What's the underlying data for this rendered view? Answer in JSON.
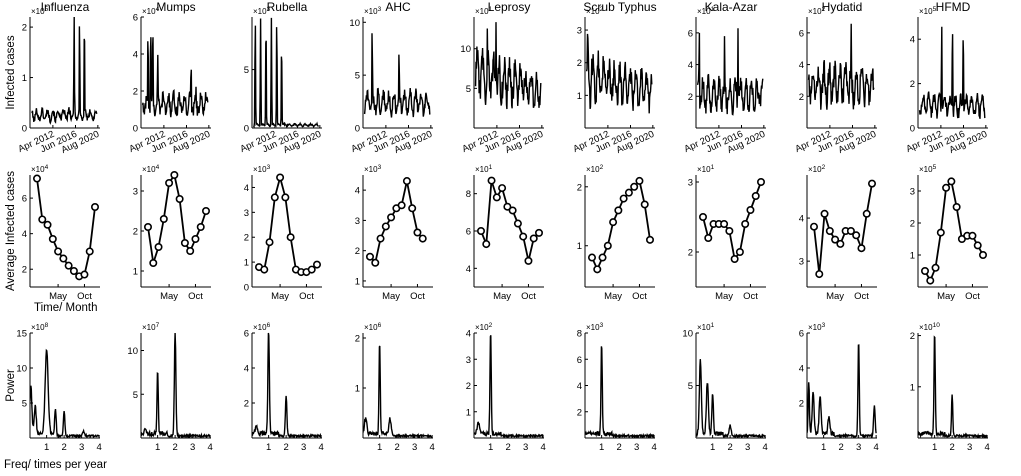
{
  "chart_data": {
    "type": "line",
    "layout": "3x9 small multiples",
    "diseases": [
      "Influenza",
      "Mumps",
      "Rubella",
      "AHC",
      "Leprosy",
      "Scrub Typhus",
      "Kala-Azar",
      "Hydatid",
      "HFMD"
    ],
    "rows": [
      {
        "id": "timeseries",
        "ylabel": "Infected cases",
        "xlabel": "",
        "xticks": [
          "Apr 2012",
          "Jun 2016",
          "Aug 2020"
        ],
        "xlim": [
          2008,
          2021
        ],
        "panels": [
          {
            "disease": "Influenza",
            "exponent": "5",
            "ylim": [
              0,
              2.2
            ],
            "yticks": [
              0,
              1,
              2
            ],
            "peaks": [
              [
                2016.2,
                2.25
              ],
              [
                2017.2,
                2.25
              ],
              [
                2018.1,
                2.25
              ]
            ],
            "base": 0.3
          },
          {
            "disease": "Mumps",
            "exponent": "4",
            "ylim": [
              0,
              6
            ],
            "yticks": [
              0,
              2,
              4,
              6
            ],
            "peaks": [
              [
                2009.3,
                5.5
              ],
              [
                2009.8,
                5.8
              ],
              [
                2010.2,
                6
              ],
              [
                2011.1,
                4.3
              ],
              [
                2017.3,
                3.8
              ],
              [
                2018.2,
                2.4
              ]
            ],
            "base": 1.5
          },
          {
            "disease": "Rubella",
            "exponent": "3",
            "ylim": [
              0,
              9.5
            ],
            "yticks": [
              0,
              5
            ],
            "peaks": [
              [
                2008.6,
                9.5
              ],
              [
                2009.6,
                9.5
              ],
              [
                2010.6,
                9.5
              ],
              [
                2011.6,
                9.5
              ],
              [
                2012.6,
                9.5
              ],
              [
                2013.5,
                7.6
              ]
            ],
            "base": 0.3
          },
          {
            "disease": "AHC",
            "exponent": "3",
            "ylim": [
              0,
              10.5
            ],
            "yticks": [
              0,
              5,
              10
            ],
            "peaks": [
              [
                2009.7,
                10.2
              ],
              [
                2014.7,
                7.8
              ]
            ],
            "base": 2.8
          },
          {
            "disease": "Leprosy",
            "exponent": "1",
            "ylim": [
              0,
              14
            ],
            "yticks": [
              5,
              10
            ],
            "peaks": [
              [
                2010.5,
                12.5
              ],
              [
                2012.1,
                13
              ]
            ],
            "base": 7
          },
          {
            "disease": "Scrub Typhus",
            "exponent": "2",
            "ylim": [
              0,
              3.4
            ],
            "yticks": [
              1,
              2,
              3
            ],
            "peaks": [
              [
                2008.5,
                3.2
              ]
            ],
            "base": 1.6
          },
          {
            "disease": "Kala-Azar",
            "exponent": "1",
            "ylim": [
              0,
              7
            ],
            "yticks": [
              2,
              4,
              6
            ],
            "peaks": [
              [
                2008.6,
                6.5
              ],
              [
                2013.3,
                5.8
              ],
              [
                2015.8,
                6.3
              ]
            ],
            "base": 2.5
          },
          {
            "disease": "Hydatid",
            "exponent": "2",
            "ylim": [
              0,
              7
            ],
            "yticks": [
              2,
              4,
              6
            ],
            "peaks": [
              [
                2016.2,
                6.6
              ]
            ],
            "base": 3.2
          },
          {
            "disease": "HFMD",
            "exponent": "5",
            "ylim": [
              0,
              5
            ],
            "yticks": [
              0,
              2,
              4
            ],
            "peaks": [
              [
                2012.4,
                4.7
              ],
              [
                2014.4,
                4.9
              ],
              [
                2016.4,
                4.7
              ]
            ],
            "base": 1.2
          }
        ]
      },
      {
        "id": "monthly",
        "ylabel": "Average Infected cases",
        "xlabel": "Time/ Month",
        "xticks": [
          "May",
          "Oct"
        ],
        "months": [
          1,
          2,
          3,
          4,
          5,
          6,
          7,
          8,
          9,
          10,
          11,
          12
        ],
        "panels": [
          {
            "disease": "Influenza",
            "exponent": "4",
            "ylim": [
              1,
              7.3
            ],
            "yticks": [
              2,
              4,
              6
            ],
            "values": [
              7.1,
              4.8,
              4.5,
              3.7,
              3.0,
              2.6,
              2.2,
              1.9,
              1.6,
              1.7,
              3.0,
              5.5
            ]
          },
          {
            "disease": "Mumps",
            "exponent": "4",
            "ylim": [
              0.6,
              3.4
            ],
            "yticks": [
              1,
              2,
              3
            ],
            "values": [
              2.1,
              1.2,
              1.6,
              2.3,
              3.2,
              3.4,
              2.8,
              1.7,
              1.5,
              1.8,
              2.1,
              2.5
            ]
          },
          {
            "disease": "Rubella",
            "exponent": "3",
            "ylim": [
              0,
              4.5
            ],
            "yticks": [
              0,
              1,
              2,
              3,
              4
            ],
            "values": [
              0.8,
              0.7,
              1.8,
              3.6,
              4.4,
              3.6,
              2.0,
              0.7,
              0.6,
              0.6,
              0.7,
              0.9
            ]
          },
          {
            "disease": "AHC",
            "exponent": "3",
            "ylim": [
              0.8,
              4.5
            ],
            "yticks": [
              1,
              2,
              3,
              4
            ],
            "values": [
              1.8,
              1.6,
              2.4,
              2.8,
              3.1,
              3.4,
              3.5,
              4.3,
              3.4,
              2.6,
              2.4,
              null
            ]
          },
          {
            "disease": "Leprosy",
            "exponent": "1",
            "ylim": [
              3,
              9
            ],
            "yticks": [
              4,
              6,
              8
            ],
            "values": [
              6.0,
              5.3,
              8.7,
              7.8,
              8.3,
              7.3,
              7.1,
              6.4,
              5.7,
              4.4,
              5.6,
              5.9
            ]
          },
          {
            "disease": "Scrub Typhus",
            "exponent": "2",
            "ylim": [
              0.3,
              2.2
            ],
            "yticks": [
              1,
              2
            ],
            "values": [
              0.8,
              0.6,
              0.8,
              1.0,
              1.4,
              1.6,
              1.8,
              1.9,
              2.0,
              2.1,
              1.7,
              1.1
            ]
          },
          {
            "disease": "Kala-Azar",
            "exponent": "1",
            "ylim": [
              1.5,
              3.1
            ],
            "yticks": [
              2,
              3
            ],
            "values": [
              2.5,
              2.2,
              2.4,
              2.4,
              2.4,
              2.3,
              1.9,
              2.0,
              2.4,
              2.6,
              2.8,
              3.0
            ]
          },
          {
            "disease": "Hydatid",
            "exponent": "2",
            "ylim": [
              2.4,
              5.0
            ],
            "yticks": [
              3,
              4
            ],
            "values": [
              3.8,
              2.7,
              4.1,
              3.7,
              3.5,
              3.4,
              3.7,
              3.7,
              3.6,
              3.3,
              4.1,
              4.8
            ]
          },
          {
            "disease": "HFMD",
            "exponent": "5",
            "ylim": [
              0,
              3.5
            ],
            "yticks": [
              1,
              2,
              3
            ],
            "values": [
              0.5,
              0.2,
              0.6,
              1.7,
              3.1,
              3.3,
              2.5,
              1.5,
              1.6,
              1.6,
              1.3,
              1.0
            ]
          }
        ]
      },
      {
        "id": "spectrum",
        "ylabel": "Power",
        "xlabel": "Freq/ times per year",
        "xticks": [
          "1",
          "2",
          "3",
          "4"
        ],
        "xlim": [
          0.05,
          4.05
        ],
        "panels": [
          {
            "disease": "Influenza",
            "exponent": "8",
            "ylim": [
              0,
              15
            ],
            "yticks": [
              5,
              10,
              15
            ],
            "peaks": [
              [
                0.1,
                7,
                0.08
              ],
              [
                0.35,
                4,
                0.08
              ],
              [
                1.0,
                12,
                0.12
              ],
              [
                1.5,
                3.5,
                0.06
              ],
              [
                2.0,
                3.5,
                0.06
              ],
              [
                3.1,
                0.6,
                0.08
              ]
            ]
          },
          {
            "disease": "Mumps",
            "exponent": "7",
            "ylim": [
              0,
              12
            ],
            "yticks": [
              5,
              10
            ],
            "peaks": [
              [
                1.0,
                7.5,
                0.05
              ],
              [
                2.0,
                12,
                0.06
              ],
              [
                0.3,
                0.5,
                0.1
              ]
            ]
          },
          {
            "disease": "Rubella",
            "exponent": "6",
            "ylim": [
              0,
              6
            ],
            "yticks": [
              2,
              4,
              6
            ],
            "peaks": [
              [
                1.0,
                6,
                0.06
              ],
              [
                2.0,
                2.3,
                0.06
              ],
              [
                0.3,
                0.4,
                0.1
              ]
            ]
          },
          {
            "disease": "AHC",
            "exponent": "6",
            "ylim": [
              0,
              2.1
            ],
            "yticks": [
              1,
              2
            ],
            "peaks": [
              [
                1.0,
                1.85,
                0.05
              ],
              [
                0.2,
                0.3,
                0.1
              ],
              [
                1.6,
                0.3,
                0.1
              ]
            ]
          },
          {
            "disease": "Leprosy",
            "exponent": "2",
            "ylim": [
              0,
              4
            ],
            "yticks": [
              1,
              2,
              3,
              4
            ],
            "peaks": [
              [
                1.0,
                4,
                0.05
              ],
              [
                0.3,
                0.4,
                0.1
              ]
            ]
          },
          {
            "disease": "Scrub Typhus",
            "exponent": "3",
            "ylim": [
              0,
              8
            ],
            "yticks": [
              2,
              4,
              6,
              8
            ],
            "peaks": [
              [
                1.0,
                7,
                0.05
              ]
            ]
          },
          {
            "disease": "Kala-Azar",
            "exponent": "1",
            "ylim": [
              0,
              10
            ],
            "yticks": [
              5,
              10
            ],
            "peaks": [
              [
                0.3,
                7,
                0.08
              ],
              [
                0.7,
                5,
                0.08
              ],
              [
                1.0,
                4,
                0.06
              ],
              [
                2.0,
                1,
                0.08
              ]
            ]
          },
          {
            "disease": "Hydatid",
            "exponent": "3",
            "ylim": [
              0,
              6
            ],
            "yticks": [
              2,
              4,
              6
            ],
            "peaks": [
              [
                0.15,
                3,
                0.05
              ],
              [
                0.4,
                2.3,
                0.08
              ],
              [
                0.8,
                2.2,
                0.08
              ],
              [
                1.3,
                1,
                0.08
              ],
              [
                3.0,
                5.5,
                0.05
              ],
              [
                3.9,
                1.8,
                0.06
              ]
            ]
          },
          {
            "disease": "HFMD",
            "exponent": "10",
            "ylim": [
              0,
              2.05
            ],
            "yticks": [
              1,
              2
            ],
            "peaks": [
              [
                1.0,
                2.0,
                0.05
              ],
              [
                2.0,
                0.8,
                0.05
              ]
            ]
          }
        ]
      }
    ]
  }
}
